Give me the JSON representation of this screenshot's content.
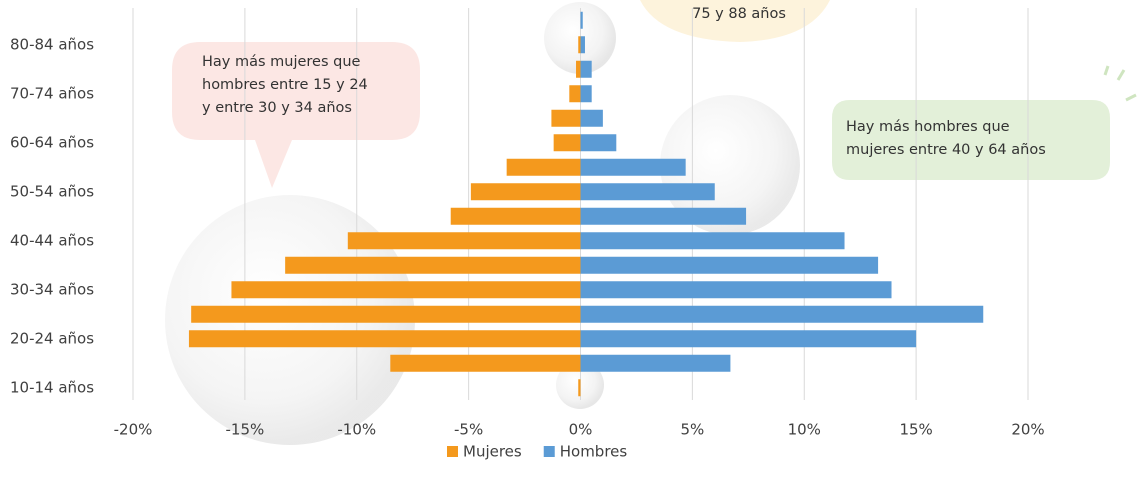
{
  "chart_data": {
    "type": "pyramid_bar",
    "categories": [
      null,
      "80-84 años",
      null,
      "70-74 años",
      null,
      "60-64 años",
      null,
      "50-54 años",
      null,
      "40-44 años",
      null,
      "30-34 años",
      null,
      "20-24 años",
      null,
      "10-14 años"
    ],
    "series": [
      {
        "name": "Mujeres",
        "color": "#f4991d",
        "values": [
          0,
          -0.1,
          -0.2,
          -0.5,
          -1.3,
          -1.2,
          -3.3,
          -4.9,
          -5.8,
          -10.4,
          -13.2,
          -15.6,
          -17.4,
          -17.5,
          -8.5,
          -0.1
        ]
      },
      {
        "name": "Hombres",
        "color": "#5b9bd5",
        "values": [
          0.1,
          0.2,
          0.5,
          0.5,
          1.0,
          1.6,
          4.7,
          6.0,
          7.4,
          11.8,
          13.3,
          13.9,
          18.0,
          15.0,
          6.7,
          0
        ]
      }
    ],
    "xlim": [
      -20,
      20
    ],
    "xticks": [
      {
        "value": -20,
        "label": "-20%"
      },
      {
        "value": -15,
        "label": "-15%"
      },
      {
        "value": -10,
        "label": "-10%"
      },
      {
        "value": -5,
        "label": "-5%"
      },
      {
        "value": 0,
        "label": "0%"
      },
      {
        "value": 5,
        "label": "5%"
      },
      {
        "value": 10,
        "label": "10%"
      },
      {
        "value": 15,
        "label": "15%"
      },
      {
        "value": 20,
        "label": "20%"
      }
    ],
    "grid": true,
    "legend": "bottom",
    "annotations": [
      {
        "lines": [
          "75 y 88 años"
        ]
      },
      {
        "lines": [
          "Hay más mujeres que",
          "hombres entre 15 y 24",
          "y entre 30 y 34 años"
        ]
      },
      {
        "lines": [
          "Hay más hombres que",
          "mujeres entre 40 y 64 años"
        ]
      }
    ]
  }
}
